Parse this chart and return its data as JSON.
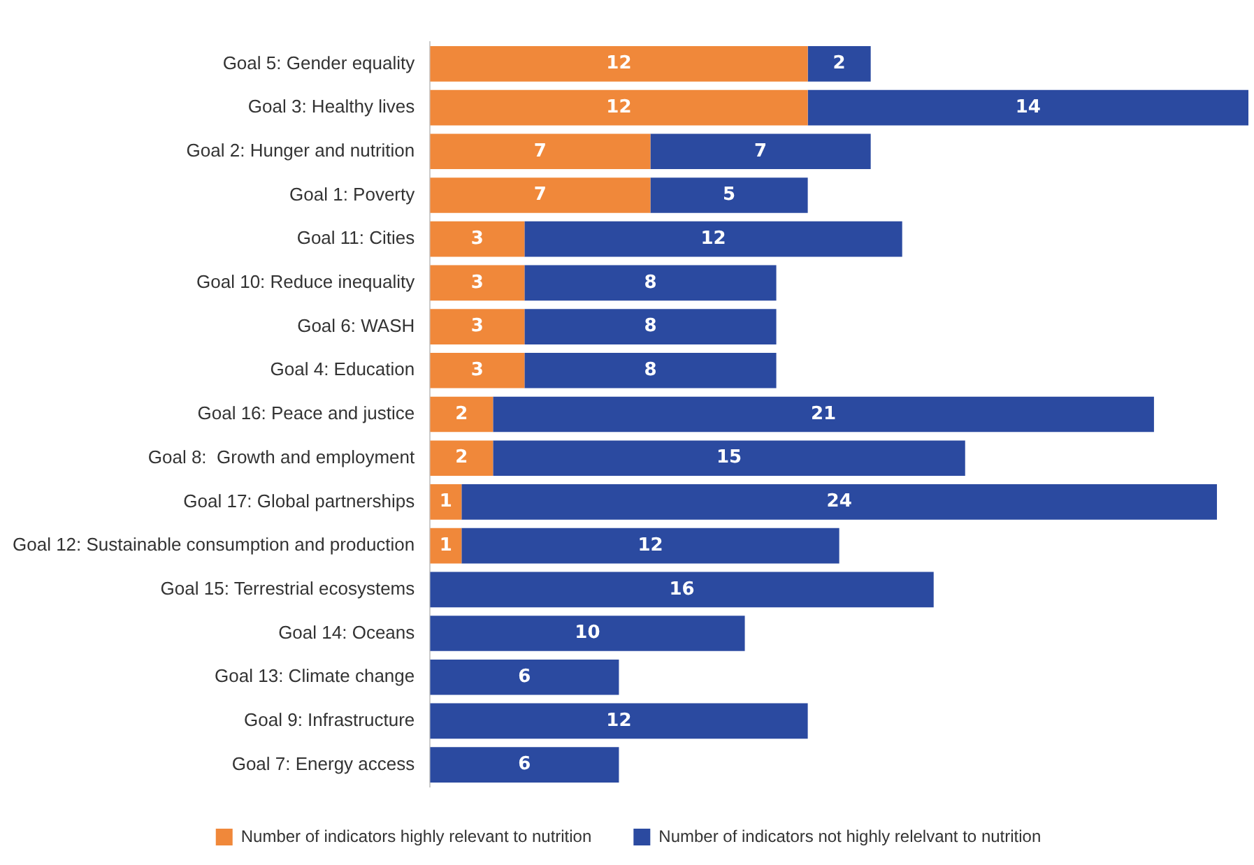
{
  "chart_data": {
    "type": "bar",
    "orientation": "horizontal",
    "stacked": true,
    "data_labels": true,
    "legend": "bottom",
    "categories": [
      "Goal 5: Gender equality",
      "Goal 3: Healthy lives",
      "Goal 2: Hunger and nutrition",
      "Goal 1: Poverty",
      "Goal 11: Cities",
      "Goal 10: Reduce inequality",
      "Goal 6: WASH",
      "Goal 4: Education",
      "Goal 16: Peace and justice",
      "Goal 8:  Growth and employment",
      "Goal 17: Global partnerships",
      "Goal 12: Sustainable consumption and production",
      "Goal 15: Terrestrial ecosystems",
      "Goal 14: Oceans",
      "Goal 13: Climate change",
      "Goal 9: Infrastructure",
      "Goal 7: Energy access"
    ],
    "series": [
      {
        "name": "Number of indicators highly relevant to nutrition",
        "color": "#f0883a",
        "values": [
          12,
          12,
          7,
          7,
          3,
          3,
          3,
          3,
          2,
          2,
          1,
          1,
          null,
          null,
          null,
          null,
          null
        ]
      },
      {
        "name": "Number of indicators not highly relelvant to nutrition",
        "color": "#2b4aa0",
        "values": [
          2,
          14,
          7,
          5,
          12,
          8,
          8,
          8,
          21,
          15,
          24,
          12,
          16,
          10,
          6,
          12,
          6
        ]
      }
    ]
  }
}
